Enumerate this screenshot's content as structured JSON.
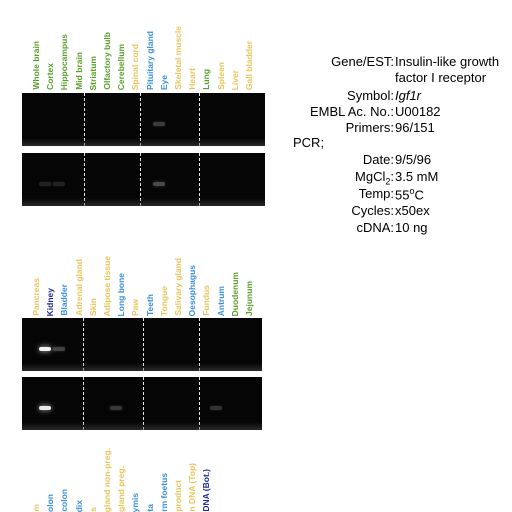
{
  "colors": {
    "green": "#5a9e2c",
    "yellow": "#e8c45a",
    "lightblue": "#3a8fd8",
    "darkblue": "#1c2a8c",
    "gel_bg": "#050505"
  },
  "panel_top": {
    "lanes": [
      {
        "label": "Whole brain",
        "color": "green"
      },
      {
        "label": "Cortex",
        "color": "green"
      },
      {
        "label": "Hippocampus",
        "color": "green"
      },
      {
        "label": "Mid brain",
        "color": "green"
      },
      {
        "label": "Striatum",
        "color": "green"
      },
      {
        "label": "Olfactory bulb",
        "color": "green"
      },
      {
        "label": "Cerebellum",
        "color": "green"
      },
      {
        "label": "Spinal cord",
        "color": "yellow"
      },
      {
        "label": "Pituitary gland",
        "color": "lightblue"
      },
      {
        "label": "Eye",
        "color": "lightblue"
      },
      {
        "label": "Skeletal muscle",
        "color": "yellow"
      },
      {
        "label": "Heart",
        "color": "yellow"
      },
      {
        "label": "Lung",
        "color": "green"
      },
      {
        "label": "Spleen",
        "color": "yellow"
      },
      {
        "label": "Liver",
        "color": "yellow"
      },
      {
        "label": "Gall bladder",
        "color": "yellow"
      }
    ]
  },
  "panel_bottom": {
    "lanes": [
      {
        "label": "Pancreas",
        "color": "yellow"
      },
      {
        "label": "Kidney",
        "color": "darkblue"
      },
      {
        "label": "Bladder",
        "color": "lightblue"
      },
      {
        "label": "Adrenal gland",
        "color": "yellow"
      },
      {
        "label": "Skin",
        "color": "yellow"
      },
      {
        "label": "Adipose tissue",
        "color": "yellow"
      },
      {
        "label": "Long bone",
        "color": "lightblue"
      },
      {
        "label": "Paw",
        "color": "yellow"
      },
      {
        "label": "Teeth",
        "color": "lightblue"
      },
      {
        "label": "Tongue",
        "color": "yellow"
      },
      {
        "label": "Salivary gland",
        "color": "yellow"
      },
      {
        "label": "Oesophagus",
        "color": "lightblue"
      },
      {
        "label": "Fundus",
        "color": "yellow"
      },
      {
        "label": "Antrum",
        "color": "lightblue"
      },
      {
        "label": "Duodenum",
        "color": "green"
      },
      {
        "label": "Jejunum",
        "color": "green"
      }
    ]
  },
  "panel_cut": {
    "labels": [
      {
        "text": "m",
        "color": "yellow"
      },
      {
        "text": "olon",
        "color": "lightblue"
      },
      {
        "text": "colon",
        "color": "lightblue"
      },
      {
        "text": "dix",
        "color": "lightblue"
      },
      {
        "text": "s",
        "color": "yellow"
      },
      {
        "text": "gland non-preg.",
        "color": "yellow"
      },
      {
        "text": "gland preg.",
        "color": "yellow"
      },
      {
        "text": "ymis",
        "color": "lightblue"
      },
      {
        "text": "ta",
        "color": "lightblue"
      },
      {
        "text": "rm foetus",
        "color": "lightblue"
      },
      {
        "text": " product",
        "color": "yellow"
      },
      {
        "text": "n DNA (Top)",
        "color": "yellow"
      },
      {
        "text": "DNA (Bot.)",
        "color": "darkblue"
      }
    ]
  },
  "info": {
    "gene_label": "Gene/EST:",
    "gene_value_line1": "Insulin-like growth",
    "gene_value_line2": "factor I receptor",
    "symbol_label": "Symbol:",
    "symbol_value": "Igf1r",
    "embl_label": "EMBL Ac. No.:",
    "embl_value": "U00182",
    "primers_label": "Primers:",
    "primers_value": "96/151",
    "pcr_label": "PCR;",
    "date_label": "Date:",
    "date_value": "9/5/96",
    "mgcl_label_main": "MgCl",
    "mgcl_label_sub": "2",
    "mgcl_label_colon": ":",
    "mgcl_value": "3.5 mM",
    "temp_label": "Temp:",
    "temp_value_main": "55",
    "temp_value_sup": "o",
    "temp_value_unit": "C",
    "cycles_label": "Cycles:",
    "cycles_value": "x50ex",
    "cdna_label": "cDNA:",
    "cdna_value": "10 ng"
  },
  "bands": {
    "top_gel_1": [
      {
        "lane": 9,
        "intensity": 0.22
      }
    ],
    "top_gel_2": [
      {
        "lane": 1,
        "intensity": 0.12
      },
      {
        "lane": 2,
        "intensity": 0.12
      },
      {
        "lane": 9,
        "intensity": 0.28
      }
    ],
    "bottom_gel_1": [
      {
        "lane": 1,
        "intensity": 0.95
      },
      {
        "lane": 2,
        "intensity": 0.25
      }
    ],
    "bottom_gel_2": [
      {
        "lane": 1,
        "intensity": 0.92
      },
      {
        "lane": 6,
        "intensity": 0.2
      },
      {
        "lane": 13,
        "intensity": 0.18
      }
    ]
  }
}
